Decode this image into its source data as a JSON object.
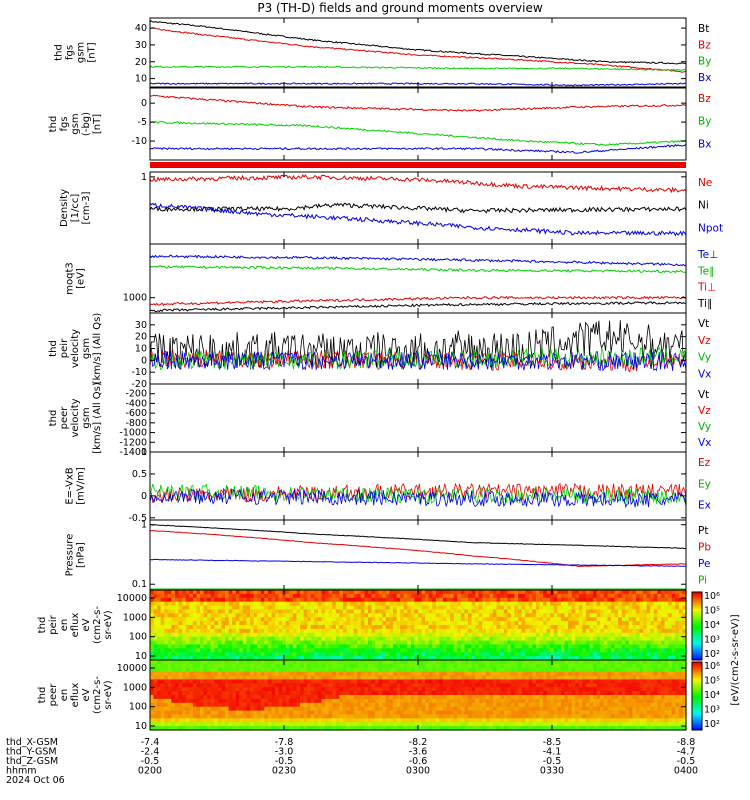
{
  "title": "P3 (TH-D) fields and ground moments overview",
  "colors": {
    "black": "#000000",
    "red": "#e00000",
    "green": "#00d000",
    "blue": "#0000e0"
  },
  "time_axis": {
    "ticks": [
      "0200",
      "0230",
      "0300",
      "0330",
      "0400"
    ],
    "date": "2024 Oct 06",
    "rows": [
      {
        "label": "thd_X-GSM",
        "values": [
          "-7.4",
          "-7.8",
          "-8.2",
          "-8.5",
          "-8.8"
        ]
      },
      {
        "label": "thd_Y-GSM",
        "values": [
          "-2.4",
          "-3.0",
          "-3.6",
          "-4.1",
          "-4.7"
        ]
      },
      {
        "label": "thd_Z-GSM",
        "values": [
          "-0.5",
          "-0.5",
          "-0.6",
          "-0.5",
          "-0.5"
        ]
      },
      {
        "label": "hhmm",
        "values": [
          "0200",
          "0230",
          "0300",
          "0330",
          "0400"
        ]
      }
    ]
  },
  "colorbar": {
    "label": "[eV/(cm2-s-sr-eV)]",
    "ticks": [
      "10²",
      "10³",
      "10⁴",
      "10⁵",
      "10⁶"
    ]
  },
  "chart_data": [
    {
      "type": "line",
      "ylabel": [
        "thd",
        "fgs",
        "gsm",
        "[nT]"
      ],
      "ylim": [
        5,
        46
      ],
      "yticks": [
        10,
        20,
        30,
        40
      ],
      "series": [
        {
          "name": "Bt",
          "color": "black",
          "x": [
            0,
            0.1,
            0.3,
            0.5,
            0.7,
            0.85,
            1
          ],
          "values": [
            44,
            41,
            33,
            27,
            23,
            20,
            19
          ]
        },
        {
          "name": "Bz",
          "color": "red",
          "x": [
            0,
            0.1,
            0.3,
            0.5,
            0.7,
            0.85,
            1
          ],
          "values": [
            40,
            36,
            29,
            24,
            21,
            18,
            14
          ]
        },
        {
          "name": "By",
          "color": "green",
          "x": [
            0,
            0.3,
            0.6,
            0.8,
            1
          ],
          "values": [
            17,
            17,
            16,
            16,
            15
          ]
        },
        {
          "name": "Bx",
          "color": "blue",
          "x": [
            0,
            0.3,
            0.6,
            0.8,
            1
          ],
          "values": [
            7,
            7,
            7,
            6,
            7
          ]
        }
      ]
    },
    {
      "type": "line",
      "ylabel": [
        "thd",
        "fgs",
        "gsm",
        "(-bg)",
        "[nT]"
      ],
      "ylim": [
        -15,
        4
      ],
      "yticks": [
        -10,
        -5,
        0
      ],
      "series": [
        {
          "name": "Bz",
          "color": "red",
          "x": [
            0,
            0.3,
            0.6,
            0.8,
            1
          ],
          "values": [
            2,
            -1,
            -2,
            -1,
            -0.5
          ]
        },
        {
          "name": "By",
          "color": "green",
          "x": [
            0,
            0.3,
            0.5,
            0.7,
            0.85,
            1
          ],
          "values": [
            -5,
            -6,
            -8,
            -10,
            -11,
            -10
          ]
        },
        {
          "name": "Bx",
          "color": "blue",
          "x": [
            0,
            0.3,
            0.6,
            0.8,
            0.9,
            1
          ],
          "values": [
            -12,
            -12,
            -12,
            -13,
            -12,
            -11
          ]
        }
      ]
    },
    {
      "type": "line",
      "ylabel": [
        "Density",
        "[1/cc]",
        "[cm-3]"
      ],
      "ylim": [
        0.08,
        1.2
      ],
      "log": true,
      "yticks": [
        1
      ],
      "series": [
        {
          "name": "Ne",
          "color": "red",
          "x": [
            0,
            0.3,
            0.5,
            0.7,
            1
          ],
          "values": [
            0.9,
            1,
            0.9,
            0.7,
            0.6
          ]
        },
        {
          "name": "Ni",
          "color": "black",
          "x": [
            0,
            0.25,
            0.35,
            0.6,
            1
          ],
          "values": [
            0.3,
            0.3,
            0.35,
            0.28,
            0.3
          ]
        },
        {
          "name": "Npot",
          "color": "blue",
          "x": [
            0,
            0.2,
            0.4,
            0.6,
            0.8,
            1
          ],
          "values": [
            0.35,
            0.25,
            0.2,
            0.15,
            0.12,
            0.12
          ]
        }
      ]
    },
    {
      "type": "line",
      "ylabel": [
        "moqt3",
        "[eV]"
      ],
      "ylim": [
        600,
        6000
      ],
      "log": true,
      "yticks": [
        1000
      ],
      "series": [
        {
          "name": "Te⊥",
          "color": "blue",
          "x": [
            0,
            0.3,
            0.6,
            1
          ],
          "values": [
            4000,
            3800,
            3500,
            3000
          ]
        },
        {
          "name": "Te∥",
          "color": "green",
          "x": [
            0,
            0.3,
            0.6,
            1
          ],
          "values": [
            2800,
            2700,
            2500,
            2400
          ]
        },
        {
          "name": "Ti⊥",
          "color": "red",
          "x": [
            0,
            0.3,
            0.6,
            1
          ],
          "values": [
            800,
            900,
            1000,
            1000
          ]
        },
        {
          "name": "Ti∥",
          "color": "black",
          "x": [
            0,
            0.3,
            0.6,
            1
          ],
          "values": [
            650,
            720,
            800,
            850
          ]
        }
      ]
    },
    {
      "type": "line",
      "ylabel": [
        "thd",
        "peir",
        "velocity",
        "gsm",
        "[km/s] (All Qs)"
      ],
      "ylim": [
        -20,
        40
      ],
      "yticks": [
        -20,
        -10,
        0,
        10,
        20,
        30
      ],
      "series": [
        {
          "name": "Vt",
          "color": "black",
          "x": [
            0,
            0.4,
            0.7,
            0.85,
            1
          ],
          "values": [
            8,
            8,
            10,
            20,
            10
          ]
        },
        {
          "name": "Vz",
          "color": "red",
          "x": [
            0,
            0.5,
            1
          ],
          "values": [
            2,
            0,
            -2
          ]
        },
        {
          "name": "Vy",
          "color": "green",
          "x": [
            0,
            0.5,
            1
          ],
          "values": [
            0,
            1,
            3
          ]
        },
        {
          "name": "Vx",
          "color": "blue",
          "x": [
            0,
            0.5,
            1
          ],
          "values": [
            0,
            0,
            -1
          ]
        }
      ]
    },
    {
      "type": "line",
      "ylabel": [
        "thd",
        "peer",
        "velocity",
        "gsm",
        "[km/s] (All Qs)"
      ],
      "ylim": [
        -1400,
        0
      ],
      "yticks": [
        -200,
        -400,
        -600,
        -800,
        -1000,
        -1200,
        -1400
      ],
      "series": [
        {
          "name": "Vt",
          "color": "black",
          "x": [],
          "values": []
        },
        {
          "name": "Vz",
          "color": "red",
          "x": [],
          "values": []
        },
        {
          "name": "Vy",
          "color": "green",
          "x": [],
          "values": []
        },
        {
          "name": "Vx",
          "color": "blue",
          "x": [],
          "values": []
        }
      ]
    },
    {
      "type": "line",
      "ylabel": [
        "E=-VxB",
        "[mV/m]"
      ],
      "ylim": [
        -0.55,
        1.0
      ],
      "yticks": [
        -0.5,
        0,
        0.5,
        1.0
      ],
      "series": [
        {
          "name": "Ez",
          "color": "red",
          "x": [
            0,
            0.5,
            1
          ],
          "values": [
            0,
            0.1,
            0.1
          ]
        },
        {
          "name": "Ey",
          "color": "green",
          "x": [
            0,
            0.5,
            1
          ],
          "values": [
            0.1,
            0,
            0
          ]
        },
        {
          "name": "Ex",
          "color": "blue",
          "x": [
            0,
            0.5,
            1
          ],
          "values": [
            0,
            -0.05,
            -0.1
          ]
        }
      ]
    },
    {
      "type": "line",
      "ylabel": [
        "Pressure",
        "[nPa]"
      ],
      "ylim": [
        0.08,
        1.2
      ],
      "log": true,
      "yticks": [
        1.0,
        0.1
      ],
      "series": [
        {
          "name": "Pt",
          "color": "black",
          "x": [
            0,
            0.3,
            0.6,
            1
          ],
          "values": [
            1.0,
            0.7,
            0.5,
            0.4
          ]
        },
        {
          "name": "Pb",
          "color": "red",
          "x": [
            0,
            0.3,
            0.6,
            0.8,
            1
          ],
          "values": [
            0.8,
            0.5,
            0.3,
            0.2,
            0.22
          ]
        },
        {
          "name": "Pe",
          "color": "blue",
          "x": [
            0,
            0.3,
            0.6,
            1
          ],
          "values": [
            0.26,
            0.24,
            0.22,
            0.2
          ]
        },
        {
          "name": "Pi",
          "color": "green",
          "x": [
            0,
            0.3,
            0.6,
            1
          ],
          "values": [
            0.07,
            0.08,
            0.07,
            0.07
          ]
        }
      ]
    },
    {
      "type": "heatmap",
      "ylabel": [
        "thd",
        "peir",
        "en",
        "eflux",
        "eV",
        "(cm2-s-",
        "sr-eV)"
      ],
      "yticks": [
        10000,
        1000,
        100,
        10
      ]
    },
    {
      "type": "heatmap",
      "ylabel": [
        "thd",
        "peer",
        "en",
        "eflux",
        "eV",
        "(cm2-s-",
        "sr-eV)"
      ],
      "yticks": [
        10000,
        1000,
        100,
        10
      ]
    }
  ]
}
